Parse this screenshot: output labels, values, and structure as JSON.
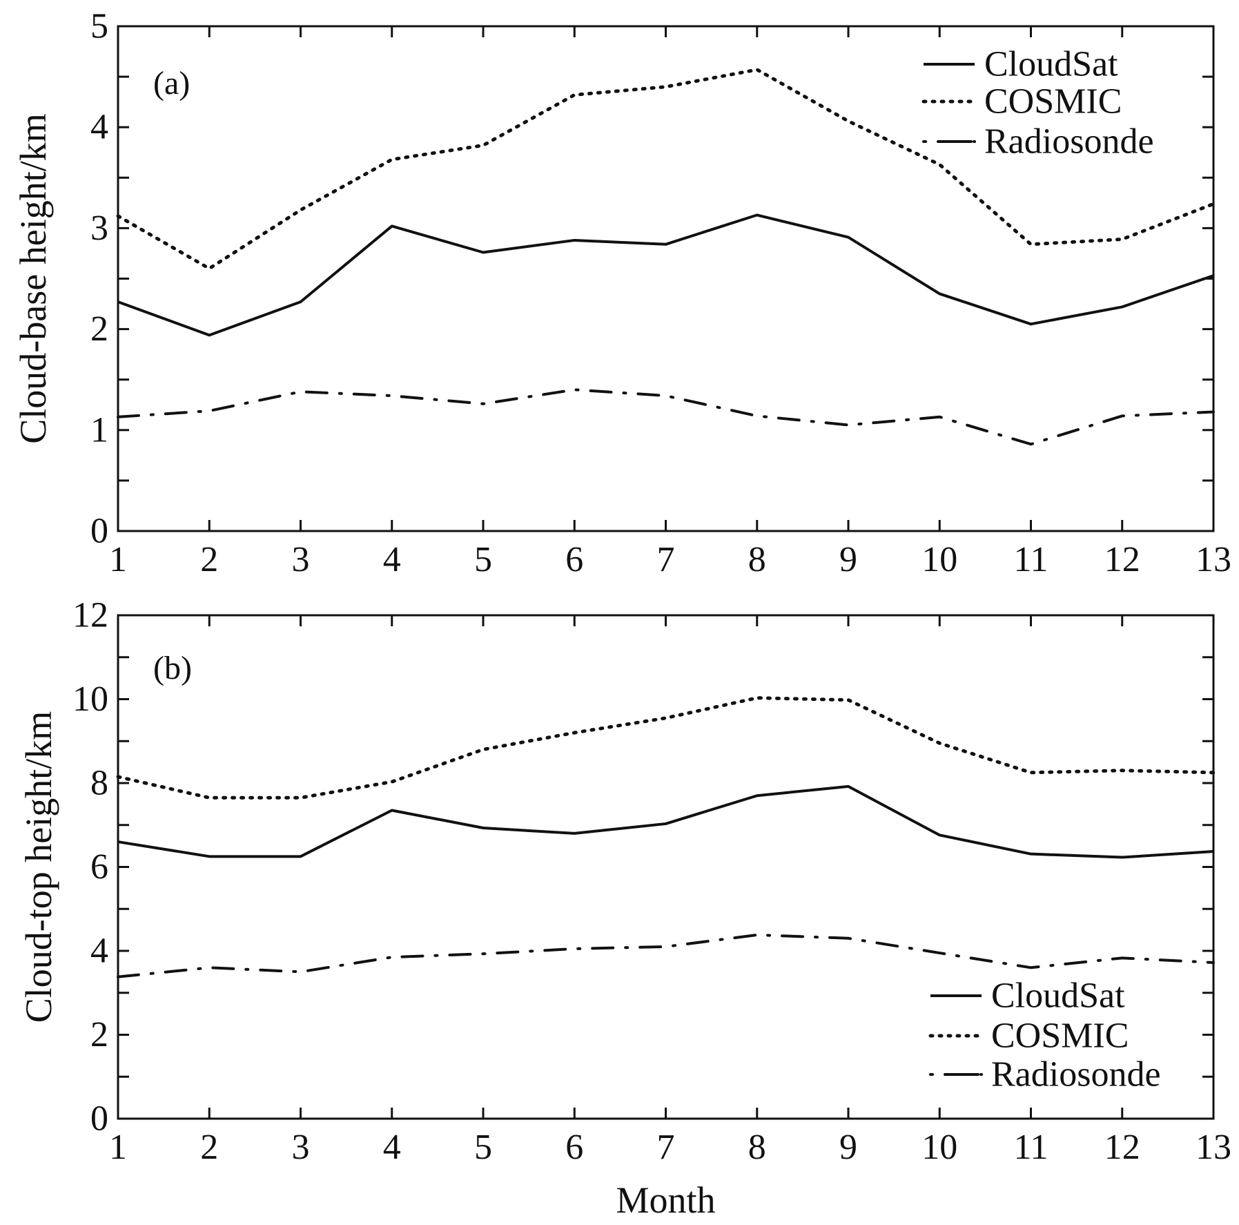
{
  "chart_data": [
    {
      "type": "line",
      "panel_label": "(a)",
      "title": "",
      "xlabel": "",
      "ylabel": "Cloud-base height/km",
      "x": [
        1,
        2,
        3,
        4,
        5,
        6,
        7,
        8,
        9,
        10,
        11,
        12,
        13
      ],
      "xlim": [
        1,
        13
      ],
      "ylim": [
        0,
        5
      ],
      "xticks": [
        "1",
        "2",
        "3",
        "4",
        "5",
        "6",
        "7",
        "8",
        "9",
        "10",
        "11",
        "12",
        "13"
      ],
      "yticks": [
        "0",
        "1",
        "2",
        "3",
        "4",
        "5"
      ],
      "legend_position": "top-right",
      "series": [
        {
          "name": "CloudSat",
          "style": "solid",
          "values": [
            2.27,
            1.94,
            2.27,
            3.02,
            2.76,
            2.88,
            2.84,
            3.13,
            2.91,
            2.35,
            2.05,
            2.22,
            2.53
          ]
        },
        {
          "name": "COSMIC",
          "style": "dotted",
          "values": [
            3.12,
            2.6,
            3.18,
            3.68,
            3.82,
            4.32,
            4.4,
            4.57,
            4.06,
            3.63,
            2.84,
            2.89,
            3.24
          ]
        },
        {
          "name": "Radiosonde",
          "style": "dash-dot",
          "values": [
            1.13,
            1.19,
            1.38,
            1.34,
            1.26,
            1.4,
            1.34,
            1.14,
            1.05,
            1.13,
            0.86,
            1.14,
            1.18
          ]
        }
      ]
    },
    {
      "type": "line",
      "panel_label": "(b)",
      "title": "",
      "xlabel": "Month",
      "ylabel": "Cloud-top height/km",
      "x": [
        1,
        2,
        3,
        4,
        5,
        6,
        7,
        8,
        9,
        10,
        11,
        12,
        13
      ],
      "xlim": [
        1,
        13
      ],
      "ylim": [
        0,
        12
      ],
      "xticks": [
        "1",
        "2",
        "3",
        "4",
        "5",
        "6",
        "7",
        "8",
        "9",
        "10",
        "11",
        "12",
        "13"
      ],
      "yticks": [
        "0",
        "2",
        "4",
        "6",
        "8",
        "10",
        "12"
      ],
      "legend_position": "bottom-right",
      "series": [
        {
          "name": "CloudSat",
          "style": "solid",
          "values": [
            6.6,
            6.25,
            6.25,
            7.35,
            6.93,
            6.8,
            7.03,
            7.7,
            7.92,
            6.76,
            6.31,
            6.23,
            6.37
          ]
        },
        {
          "name": "COSMIC",
          "style": "dotted",
          "values": [
            8.15,
            7.65,
            7.65,
            8.03,
            8.8,
            9.2,
            9.55,
            10.03,
            9.98,
            8.95,
            8.25,
            8.3,
            8.25
          ]
        },
        {
          "name": "Radiosonde",
          "style": "dash-dot",
          "values": [
            3.38,
            3.6,
            3.5,
            3.85,
            3.93,
            4.05,
            4.1,
            4.38,
            4.3,
            3.95,
            3.6,
            3.83,
            3.72
          ]
        }
      ]
    }
  ]
}
